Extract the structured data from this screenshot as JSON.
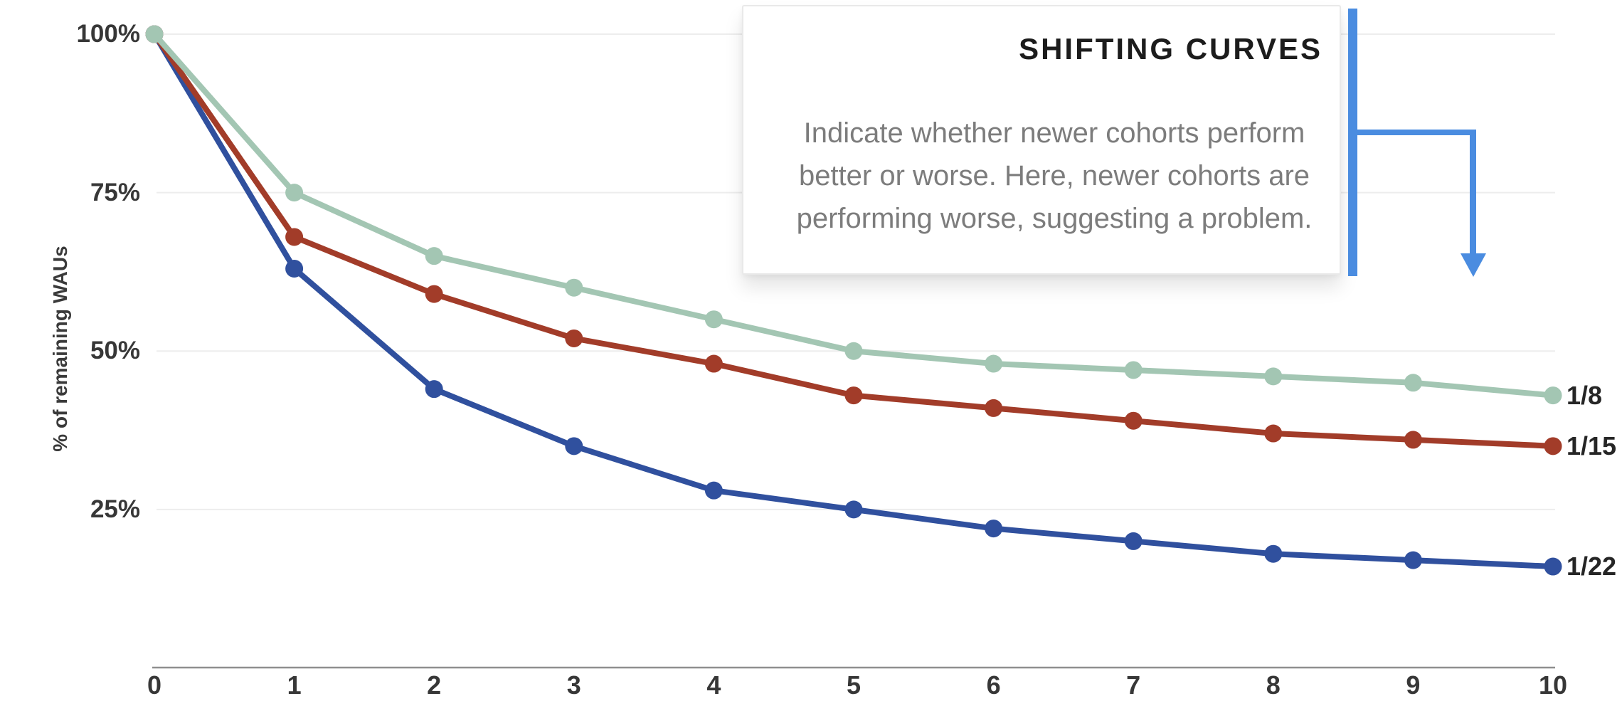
{
  "chart_data": {
    "type": "line",
    "x": [
      0,
      1,
      2,
      3,
      4,
      5,
      6,
      7,
      8,
      9,
      10
    ],
    "x_tick_labels": [
      "0",
      "1",
      "2",
      "3",
      "4",
      "5",
      "6",
      "7",
      "8",
      "9",
      "10"
    ],
    "xlim": [
      0,
      10
    ],
    "ylabel": "% of remaining WAUs",
    "ylim": [
      0,
      100
    ],
    "y_ticks": [
      {
        "label": "100%",
        "value": 100
      },
      {
        "label": "75%",
        "value": 75
      },
      {
        "label": "50%",
        "value": 50
      },
      {
        "label": "25%",
        "value": 25
      }
    ],
    "grid": "horizontal-only",
    "legend_position": "labels-at-line-ends",
    "series": [
      {
        "name": "1/8",
        "color": "#a3c6b3",
        "values": [
          100,
          75,
          65,
          60,
          55,
          50,
          48,
          47,
          46,
          45,
          43
        ]
      },
      {
        "name": "1/15",
        "color": "#a23c29",
        "values": [
          100,
          68,
          59,
          52,
          48,
          43,
          41,
          39,
          37,
          36,
          35
        ]
      },
      {
        "name": "1/22",
        "color": "#30509e",
        "values": [
          100,
          63,
          44,
          35,
          28,
          25,
          22,
          20,
          18,
          17,
          16
        ]
      }
    ]
  },
  "annotation": {
    "title": "SHIFTING CURVES",
    "body_lines": [
      "Indicate whether newer cohorts perform",
      "better or worse. Here, newer cohorts are",
      "performing worse, suggesting a problem."
    ],
    "accent_color": "#4a8ce0"
  },
  "colors": {
    "background": "#ffffff",
    "grid": "#ededed",
    "axis": "#8f8f8f",
    "tick_text": "#373737",
    "series_label_text": "#262626",
    "annotation_title": "#1c1c1c",
    "annotation_body": "#7c7c7c"
  }
}
